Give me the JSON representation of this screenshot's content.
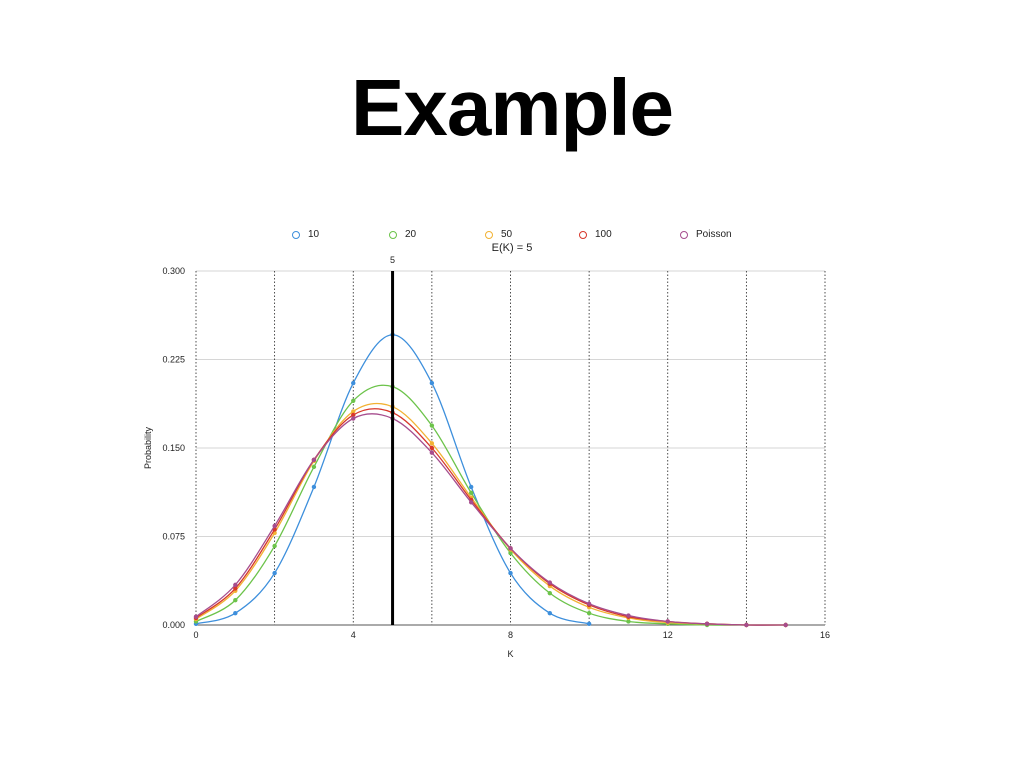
{
  "slide": {
    "title": "Example"
  },
  "chart_data": {
    "type": "line",
    "title": "E(K) = 5",
    "xlabel": "K",
    "ylabel": "Probability",
    "xlim": [
      0,
      16
    ],
    "ylim": [
      0,
      0.3
    ],
    "x_ticks": [
      "0",
      "4",
      "8",
      "12",
      "16"
    ],
    "y_ticks": [
      "0.000",
      "0.075",
      "0.150",
      "0.225",
      "0.300"
    ],
    "vertical_marker": {
      "x": 5,
      "label": "5"
    },
    "grid": {
      "horizontal": true,
      "vertical_dotted": true
    },
    "legend_position": "top",
    "x": [
      0,
      1,
      2,
      3,
      4,
      5,
      6,
      7,
      8,
      9,
      10,
      11,
      12,
      13,
      14,
      15
    ],
    "series": [
      {
        "name": "10",
        "color": "#3d8fdc",
        "values": [
          0.001,
          0.01,
          0.044,
          0.117,
          0.205,
          0.246,
          0.205,
          0.117,
          0.044,
          0.01,
          0.001,
          null,
          null,
          null,
          null,
          null
        ]
      },
      {
        "name": "20",
        "color": "#6cc34a",
        "values": [
          0.003,
          0.021,
          0.067,
          0.134,
          0.19,
          0.202,
          0.169,
          0.112,
          0.061,
          0.027,
          0.01,
          0.003,
          0.001,
          0.0,
          0.0,
          0.0
        ]
      },
      {
        "name": "50",
        "color": "#f2b233",
        "values": [
          0.005,
          0.029,
          0.078,
          0.139,
          0.181,
          0.185,
          0.154,
          0.108,
          0.064,
          0.033,
          0.015,
          0.006,
          0.002,
          0.001,
          0.0,
          0.0
        ]
      },
      {
        "name": "100",
        "color": "#d7372b",
        "values": [
          0.006,
          0.031,
          0.081,
          0.14,
          0.178,
          0.18,
          0.15,
          0.106,
          0.065,
          0.035,
          0.017,
          0.007,
          0.003,
          0.001,
          0.0,
          0.0
        ]
      },
      {
        "name": "Poisson",
        "color": "#a64d8e",
        "values": [
          0.007,
          0.034,
          0.084,
          0.14,
          0.175,
          0.175,
          0.146,
          0.104,
          0.065,
          0.036,
          0.018,
          0.008,
          0.003,
          0.001,
          0.0,
          0.0
        ]
      }
    ]
  }
}
